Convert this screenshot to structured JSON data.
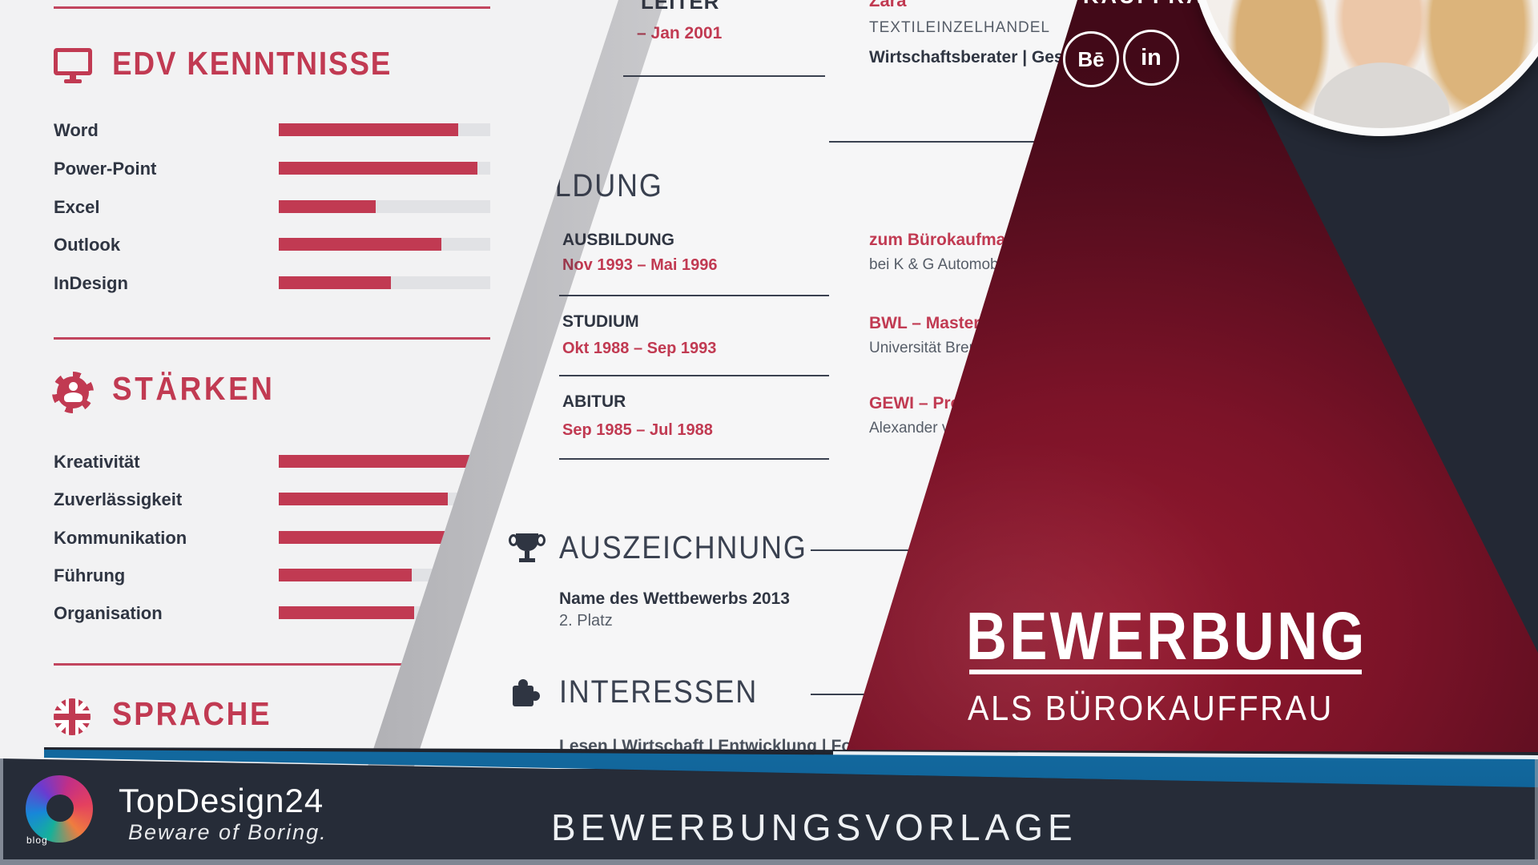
{
  "colors": {
    "accent_red": "#c13a52",
    "maroon": "#7c1328",
    "navy": "#232834",
    "footer_bar": "#262c38",
    "blue_stripe": "#2b97d2",
    "page": "#f4f4f5"
  },
  "left_page": {
    "edv": {
      "title": "EDV KENNTNISSE",
      "icon": "monitor-icon",
      "skills": [
        {
          "label": "Word",
          "percent": 85
        },
        {
          "label": "Power-Point",
          "percent": 94
        },
        {
          "label": "Excel",
          "percent": 46
        },
        {
          "label": "Outlook",
          "percent": 77
        },
        {
          "label": "InDesign",
          "percent": 53
        }
      ]
    },
    "staerken": {
      "title": "STÄRKEN",
      "icon": "gear-person-icon",
      "skills": [
        {
          "label": "Kreativität",
          "percent": 91
        },
        {
          "label": "Zuverlässigkeit",
          "percent": 80
        },
        {
          "label": "Kommunikation",
          "percent": 95
        },
        {
          "label": "Führung",
          "percent": 63
        },
        {
          "label": "Organisation",
          "percent": 64
        }
      ]
    },
    "sprache": {
      "title": "SPRACHE",
      "icon": "uk-flag-icon"
    }
  },
  "middle_page": {
    "experience": {
      "job_fragment": "LEITER",
      "date_fragment": "– Jan 2001",
      "company": "Zara",
      "industry": "TEXTILEINZELHANDEL",
      "role_fragment": "Wirtschaftsberater | Geschäf"
    },
    "bildung": {
      "title": "BILDUNG",
      "entries": [
        {
          "label": "AUSBILDUNG",
          "date": "Nov 1993 – Mai 1996",
          "right_title": "zum Bürokaufmann",
          "right_subtitle": "bei K & G Automobili"
        },
        {
          "label": "STUDIUM",
          "date": "Okt 1988 – Sep 1993",
          "right_title": "BWL – Master o",
          "right_subtitle": "Universität Brem"
        },
        {
          "label": "ABITUR",
          "date": "Sep 1985 – Jul 1988",
          "right_title": "GEWI – Profi",
          "right_subtitle": "Alexander von"
        }
      ]
    },
    "auszeichnung": {
      "title": "AUSZEICHNUNG",
      "icon": "trophy-icon",
      "award_name": "Name des Wettbewerbs 2013",
      "award_rank": "2. Platz"
    },
    "interessen": {
      "title": "INTERESSEN",
      "icon": "puzzle-icon",
      "items_fragment": "Lesen | Wirtschaft | Entwicklung | Foto"
    }
  },
  "banner": {
    "top_fragment": "KAUFFRAU",
    "title": "BEWERBUNG",
    "subtitle": "ALS BÜROKAUFFRAU",
    "social": [
      {
        "name": "behance",
        "label": "Bē"
      },
      {
        "name": "linkedin",
        "label": "in"
      }
    ]
  },
  "footer": {
    "brand": "TopDesign24",
    "brand_sub": "blog",
    "tagline": "Beware of Boring.",
    "title": "BEWERBUNGSVORLAGE"
  }
}
